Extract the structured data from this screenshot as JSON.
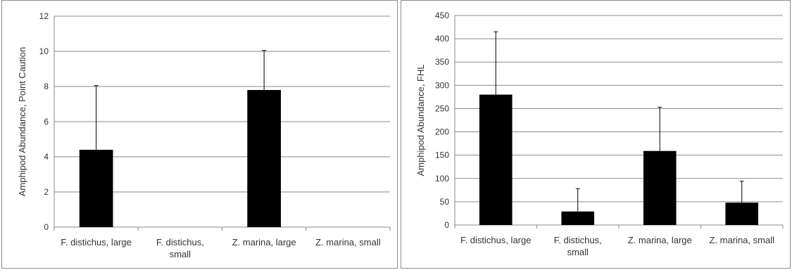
{
  "chart_data": [
    {
      "type": "bar",
      "categories": [
        "F. distichus, large",
        "F. distichus, small",
        "Z. marina, large",
        "Z. marina, small"
      ],
      "category_lines": [
        [
          "F. distichus, large"
        ],
        [
          "F. distichus,",
          "small"
        ],
        [
          "Z. marina, large"
        ],
        [
          "Z. marina, small"
        ]
      ],
      "values": [
        4.4,
        0,
        7.8,
        0
      ],
      "error_plus": [
        3.65,
        0,
        2.25,
        0
      ],
      "ylabel": "Amphipod Abundance, Point Caution",
      "xlabel": "",
      "title": "",
      "ylim": [
        0,
        12
      ],
      "yticks": [
        0,
        2,
        4,
        6,
        8,
        10,
        12
      ],
      "grid": true,
      "bar_color": "#000000"
    },
    {
      "type": "bar",
      "categories": [
        "F. distichus, large",
        "F. distichus, small",
        "Z. marina, large",
        "Z. marina, small"
      ],
      "category_lines": [
        [
          "F. distichus, large"
        ],
        [
          "F. distichus,",
          "small"
        ],
        [
          "Z. marina, large"
        ],
        [
          "Z. marina, small"
        ]
      ],
      "values": [
        280,
        29,
        159,
        48
      ],
      "error_plus": [
        135,
        49,
        94,
        46
      ],
      "ylabel": "Amphipod Abundance, FHL",
      "xlabel": "",
      "title": "",
      "ylim": [
        0,
        450
      ],
      "yticks": [
        0,
        50,
        100,
        150,
        200,
        250,
        300,
        350,
        400,
        450
      ],
      "grid": true,
      "bar_color": "#000000"
    }
  ]
}
